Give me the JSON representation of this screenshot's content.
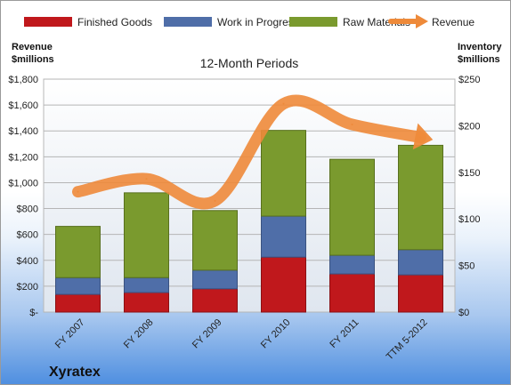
{
  "chart_data": {
    "type": "bar",
    "stacked": true,
    "subtitle": "12-Month Periods",
    "company": "Xyratex",
    "categories": [
      "FY 2007",
      "FY 2008",
      "FY 2009",
      "FY 2010",
      "FY 2011",
      "TTM 5-2012"
    ],
    "series": [
      {
        "name": "Finished Goods",
        "axis": "right",
        "color": "#c0181c",
        "values": [
          19,
          21,
          25,
          59,
          41,
          40
        ]
      },
      {
        "name": "Work in Progress",
        "axis": "right",
        "color": "#4f6ea8",
        "values": [
          18,
          16,
          20,
          44,
          20,
          27
        ]
      },
      {
        "name": "Raw Materials",
        "axis": "right",
        "color": "#7a9a2e",
        "values": [
          55,
          91,
          64,
          92,
          103,
          112
        ]
      }
    ],
    "line_series": {
      "name": "Revenue",
      "axis": "left",
      "color": "#ee8a3a",
      "values": [
        930,
        1030,
        860,
        1610,
        1450,
        1350
      ]
    },
    "left_axis": {
      "label_line1": "Revenue",
      "label_line2": "$millions",
      "min": 0,
      "max": 1800,
      "ticks": [
        "$-",
        "$200",
        "$400",
        "$600",
        "$800",
        "$1,000",
        "$1,200",
        "$1,400",
        "$1,600",
        "$1,800"
      ]
    },
    "right_axis": {
      "label_line1": "Inventory",
      "label_line2": "$millions",
      "min": 0,
      "max": 250,
      "ticks": [
        "$0",
        "$50",
        "$100",
        "$150",
        "$200",
        "$250"
      ]
    },
    "grid": true,
    "legend_position": "top"
  }
}
